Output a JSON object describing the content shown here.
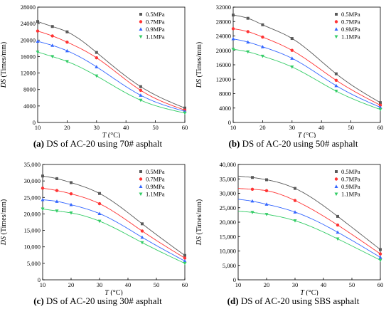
{
  "chart_data": [
    {
      "type": "scatter",
      "caption": {
        "letter": "(a)",
        "text": "DS of AC-20 using 70# asphalt"
      },
      "xlabel": "T",
      "xunit": "(°C)",
      "ylabel": "DS",
      "yunit": "(Times/mm)",
      "xlim": [
        10,
        60
      ],
      "ylim": [
        0,
        28000
      ],
      "xticks": [
        "10",
        "20",
        "30",
        "40",
        "50",
        "60"
      ],
      "yticks": [
        "0",
        "4000",
        "8000",
        "12000",
        "16000",
        "20000",
        "24000",
        "28000"
      ],
      "x": [
        10,
        15,
        20,
        30,
        45,
        60
      ],
      "fit_curves": true,
      "legend": "top-right",
      "series": [
        {
          "name": "0.5MPa",
          "color": "#595959",
          "marker": "square",
          "values": [
            24500,
            23300,
            22000,
            17000,
            8700,
            3500
          ]
        },
        {
          "name": "0.7MPa",
          "color": "#ff3333",
          "marker": "circle",
          "values": [
            22200,
            21000,
            19500,
            15700,
            7800,
            3000
          ]
        },
        {
          "name": "0.9MPa",
          "color": "#3366ff",
          "marker": "triangle",
          "values": [
            19700,
            18700,
            17400,
            13500,
            6600,
            2700
          ]
        },
        {
          "name": "1.1MPa",
          "color": "#33cc66",
          "marker": "tridown",
          "values": [
            17100,
            16000,
            14800,
            11300,
            5400,
            2300
          ]
        }
      ]
    },
    {
      "type": "scatter",
      "caption": {
        "letter": "(b)",
        "text": "DS of AC-20 using 50# asphalt"
      },
      "xlabel": "T",
      "xunit": "(°C)",
      "ylabel": "DS",
      "yunit": "(Times/mm)",
      "xlim": [
        10,
        60
      ],
      "ylim": [
        0,
        32000
      ],
      "xticks": [
        "10",
        "20",
        "30",
        "40",
        "50",
        "60"
      ],
      "yticks": [
        "0",
        "4000",
        "8000",
        "12000",
        "16000",
        "20000",
        "24000",
        "28000",
        "32000"
      ],
      "x": [
        10,
        15,
        20,
        30,
        45,
        60
      ],
      "fit_curves": true,
      "legend": "top-right",
      "series": [
        {
          "name": "0.5MPa",
          "color": "#595959",
          "marker": "square",
          "values": [
            29800,
            28900,
            27100,
            23300,
            13500,
            5500
          ]
        },
        {
          "name": "0.7MPa",
          "color": "#ff3333",
          "marker": "circle",
          "values": [
            26000,
            25200,
            23700,
            20000,
            11700,
            4800
          ]
        },
        {
          "name": "0.9MPa",
          "color": "#3366ff",
          "marker": "triangle",
          "values": [
            23200,
            22300,
            21000,
            17800,
            10200,
            4200
          ]
        },
        {
          "name": "1.1MPa",
          "color": "#33cc66",
          "marker": "tridown",
          "values": [
            20300,
            19600,
            18400,
            15400,
            8700,
            3600
          ]
        }
      ]
    },
    {
      "type": "scatter",
      "caption": {
        "letter": "(c)",
        "text": "DS of AC-20 using 30# asphalt"
      },
      "xlabel": "T",
      "xunit": "(°C)",
      "ylabel": "DS",
      "yunit": "(Times/mm)",
      "xlim": [
        10,
        60
      ],
      "ylim": [
        0,
        35000
      ],
      "xticks": [
        "10",
        "20",
        "30",
        "40",
        "50",
        "60"
      ],
      "yticks": [
        "0",
        "5,000",
        "10,000",
        "15,000",
        "20,000",
        "25,000",
        "30,000",
        "35,000"
      ],
      "x": [
        10,
        15,
        20,
        30,
        45,
        60
      ],
      "fit_curves": true,
      "legend": "top-right",
      "series": [
        {
          "name": "0.5MPa",
          "color": "#595959",
          "marker": "square",
          "values": [
            31500,
            30700,
            29500,
            26200,
            17000,
            7400
          ]
        },
        {
          "name": "0.7MPa",
          "color": "#ff3333",
          "marker": "circle",
          "values": [
            27800,
            27100,
            26100,
            23100,
            14800,
            6600
          ]
        },
        {
          "name": "0.9MPa",
          "color": "#3366ff",
          "marker": "triangle",
          "values": [
            24300,
            23800,
            22800,
            20100,
            12900,
            5700
          ]
        },
        {
          "name": "1.1MPa",
          "color": "#33cc66",
          "marker": "tridown",
          "values": [
            21500,
            20900,
            20300,
            17800,
            11300,
            5000
          ]
        }
      ]
    },
    {
      "type": "scatter",
      "caption": {
        "letter": "(d)",
        "text": "DS of AC-20 using SBS asphalt"
      },
      "xlabel": "T",
      "xunit": "(°C)",
      "ylabel": "DS",
      "yunit": "(Times/mm)",
      "xlim": [
        10,
        60
      ],
      "ylim": [
        0,
        40000
      ],
      "xticks": [
        "10",
        "20",
        "30",
        "40",
        "50",
        "60"
      ],
      "yticks": [
        "0",
        "5,000",
        "10,000",
        "15,000",
        "20,000",
        "25,000",
        "30,000",
        "35,000",
        "40,000"
      ],
      "x": [
        15,
        20,
        30,
        45,
        60
      ],
      "fit_curves": true,
      "legend": "top-right",
      "series": [
        {
          "name": "0.5MPa",
          "color": "#595959",
          "marker": "square",
          "values": [
            35500,
            34700,
            31700,
            22000,
            10500
          ]
        },
        {
          "name": "0.7MPa",
          "color": "#ff3333",
          "marker": "circle",
          "values": [
            31400,
            30900,
            27500,
            19000,
            9000
          ]
        },
        {
          "name": "0.9MPa",
          "color": "#3366ff",
          "marker": "triangle",
          "values": [
            27300,
            26200,
            23500,
            16500,
            7800
          ]
        },
        {
          "name": "1.1MPa",
          "color": "#33cc66",
          "marker": "tridown",
          "values": [
            23400,
            22700,
            20500,
            14200,
            6800
          ]
        }
      ]
    }
  ]
}
